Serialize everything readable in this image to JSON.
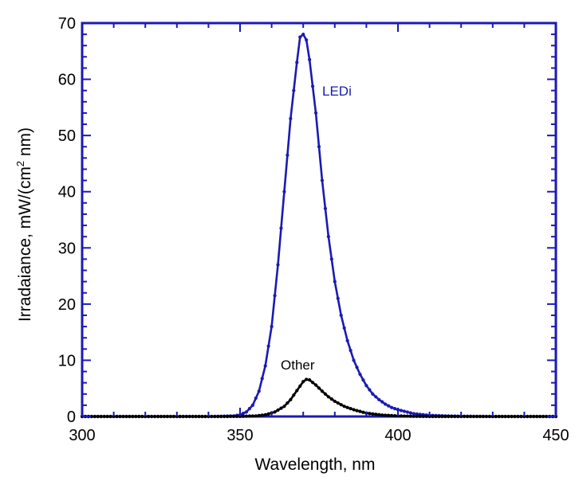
{
  "chart_data": {
    "type": "line",
    "title": "",
    "xlabel": "Wavelength, nm",
    "ylabel": "Irradaiance, mW/(cm² nm)",
    "ylabel_parts": {
      "pre": "Irradaiance, mW/(cm",
      "sup": "2",
      "post": " nm)"
    },
    "xlim": [
      300,
      450
    ],
    "ylim": [
      0,
      70
    ],
    "xticks": [
      300,
      350,
      400,
      450
    ],
    "yticks": [
      0,
      10,
      20,
      30,
      40,
      50,
      60,
      70
    ],
    "grid": false,
    "series": [
      {
        "name": "LEDi",
        "color": "#1a1ab4",
        "marker": "dot",
        "x": [
          300,
          340,
          345,
          348,
          350,
          352,
          354,
          356,
          358,
          360,
          362,
          364,
          366,
          368,
          369,
          370,
          371,
          372,
          374,
          376,
          378,
          380,
          382,
          384,
          386,
          388,
          390,
          392,
          394,
          396,
          398,
          400,
          405,
          410,
          415,
          420,
          430,
          440,
          450
        ],
        "y": [
          0,
          0,
          0.05,
          0.1,
          0.3,
          0.8,
          2.0,
          4.5,
          9.0,
          16.0,
          27.0,
          40.0,
          53.0,
          63.0,
          67.5,
          68.0,
          67.0,
          63.5,
          54.0,
          42.0,
          32.0,
          24.0,
          18.0,
          13.5,
          10.0,
          7.5,
          5.5,
          4.0,
          3.0,
          2.2,
          1.6,
          1.2,
          0.5,
          0.2,
          0.1,
          0.05,
          0,
          0,
          0
        ]
      },
      {
        "name": "Other",
        "color": "#000000",
        "marker": "dot",
        "x": [
          300,
          345,
          350,
          355,
          358,
          361,
          364,
          366,
          368,
          370,
          371,
          372,
          374,
          376,
          378,
          380,
          383,
          386,
          390,
          395,
          400,
          405,
          410,
          420,
          450
        ],
        "y": [
          0,
          0,
          0.02,
          0.1,
          0.3,
          0.8,
          1.8,
          3.0,
          4.6,
          6.2,
          6.6,
          6.5,
          5.6,
          4.5,
          3.5,
          2.7,
          1.8,
          1.2,
          0.6,
          0.25,
          0.1,
          0.04,
          0,
          0,
          0
        ]
      }
    ],
    "annotations": [
      {
        "text": "LEDi",
        "series": "LEDi"
      },
      {
        "text": "Other",
        "series": "Other"
      }
    ],
    "colors": {
      "frame": "#1a1ab4",
      "text": "#000000"
    }
  }
}
